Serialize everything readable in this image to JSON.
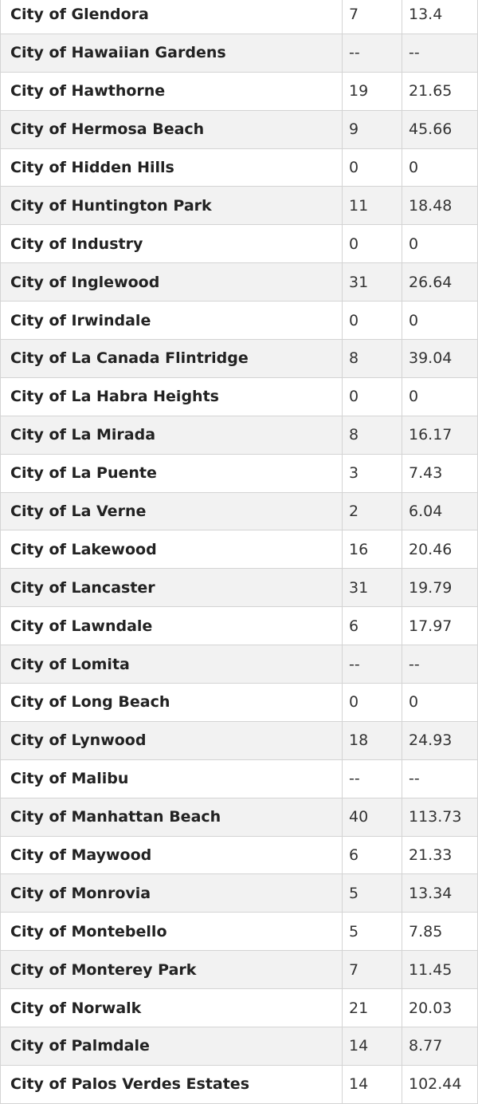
{
  "table": {
    "rows": [
      {
        "city": "City of Glendora",
        "count": "7",
        "rate": "13.4"
      },
      {
        "city": "City of Hawaiian Gardens",
        "count": "--",
        "rate": "--"
      },
      {
        "city": "City of Hawthorne",
        "count": "19",
        "rate": "21.65"
      },
      {
        "city": "City of Hermosa Beach",
        "count": "9",
        "rate": "45.66"
      },
      {
        "city": "City of Hidden Hills",
        "count": "0",
        "rate": "0"
      },
      {
        "city": "City of Huntington Park",
        "count": "11",
        "rate": "18.48"
      },
      {
        "city": "City of Industry",
        "count": "0",
        "rate": "0"
      },
      {
        "city": "City of Inglewood",
        "count": "31",
        "rate": "26.64"
      },
      {
        "city": "City of Irwindale",
        "count": "0",
        "rate": "0"
      },
      {
        "city": "City of La Canada Flintridge",
        "count": "8",
        "rate": "39.04"
      },
      {
        "city": "City of La Habra Heights",
        "count": "0",
        "rate": "0"
      },
      {
        "city": "City of La Mirada",
        "count": "8",
        "rate": "16.17"
      },
      {
        "city": "City of La Puente",
        "count": "3",
        "rate": "7.43"
      },
      {
        "city": "City of La Verne",
        "count": "2",
        "rate": "6.04"
      },
      {
        "city": "City of Lakewood",
        "count": "16",
        "rate": "20.46"
      },
      {
        "city": "City of Lancaster",
        "count": "31",
        "rate": "19.79"
      },
      {
        "city": "City of Lawndale",
        "count": "6",
        "rate": "17.97"
      },
      {
        "city": "City of Lomita",
        "count": "--",
        "rate": "--"
      },
      {
        "city": "City of Long Beach",
        "count": "0",
        "rate": "0"
      },
      {
        "city": "City of Lynwood",
        "count": "18",
        "rate": "24.93"
      },
      {
        "city": "City of Malibu",
        "count": "--",
        "rate": "--"
      },
      {
        "city": "City of Manhattan Beach",
        "count": "40",
        "rate": "113.73"
      },
      {
        "city": "City of Maywood",
        "count": "6",
        "rate": "21.33"
      },
      {
        "city": "City of Monrovia",
        "count": "5",
        "rate": "13.34"
      },
      {
        "city": "City of Montebello",
        "count": "5",
        "rate": "7.85"
      },
      {
        "city": "City of Monterey Park",
        "count": "7",
        "rate": "11.45"
      },
      {
        "city": "City of Norwalk",
        "count": "21",
        "rate": "20.03"
      },
      {
        "city": "City of Palmdale",
        "count": "14",
        "rate": "8.77"
      },
      {
        "city": "City of Palos Verdes Estates",
        "count": "14",
        "rate": "102.44"
      }
    ]
  }
}
